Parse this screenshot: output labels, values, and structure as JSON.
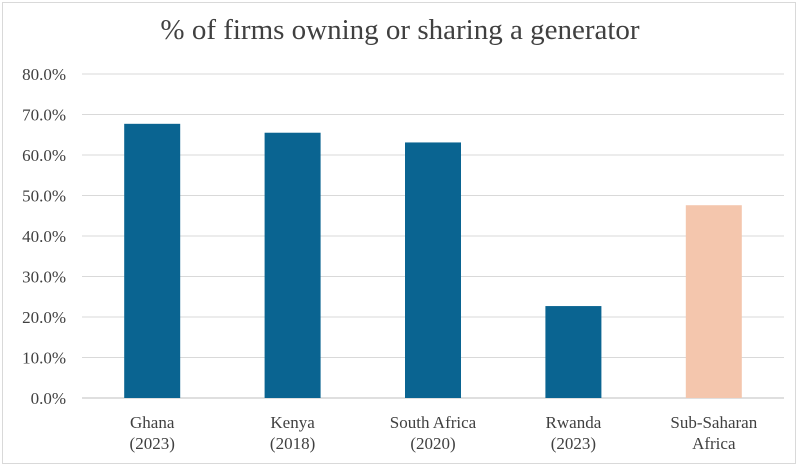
{
  "chart_data": {
    "type": "bar",
    "title": "% of firms owning or sharing a generator",
    "xlabel": "",
    "ylabel": "",
    "categories": [
      [
        "Ghana",
        "(2023)"
      ],
      [
        "Kenya",
        "(2018)"
      ],
      [
        "South Africa",
        "(2020)"
      ],
      [
        "Rwanda",
        "(2023)"
      ],
      [
        "Sub-Saharan",
        "Africa"
      ]
    ],
    "values": [
      67.7,
      65.5,
      63.1,
      22.7,
      47.6
    ],
    "colors": [
      "#0a6491",
      "#0a6491",
      "#0a6491",
      "#0a6491",
      "#f4c6ad"
    ],
    "ylim": [
      0,
      80
    ],
    "yticks": [
      "0.0%",
      "10.0%",
      "20.0%",
      "30.0%",
      "40.0%",
      "50.0%",
      "60.0%",
      "70.0%",
      "80.0%"
    ],
    "grid": true,
    "legend": "none"
  }
}
